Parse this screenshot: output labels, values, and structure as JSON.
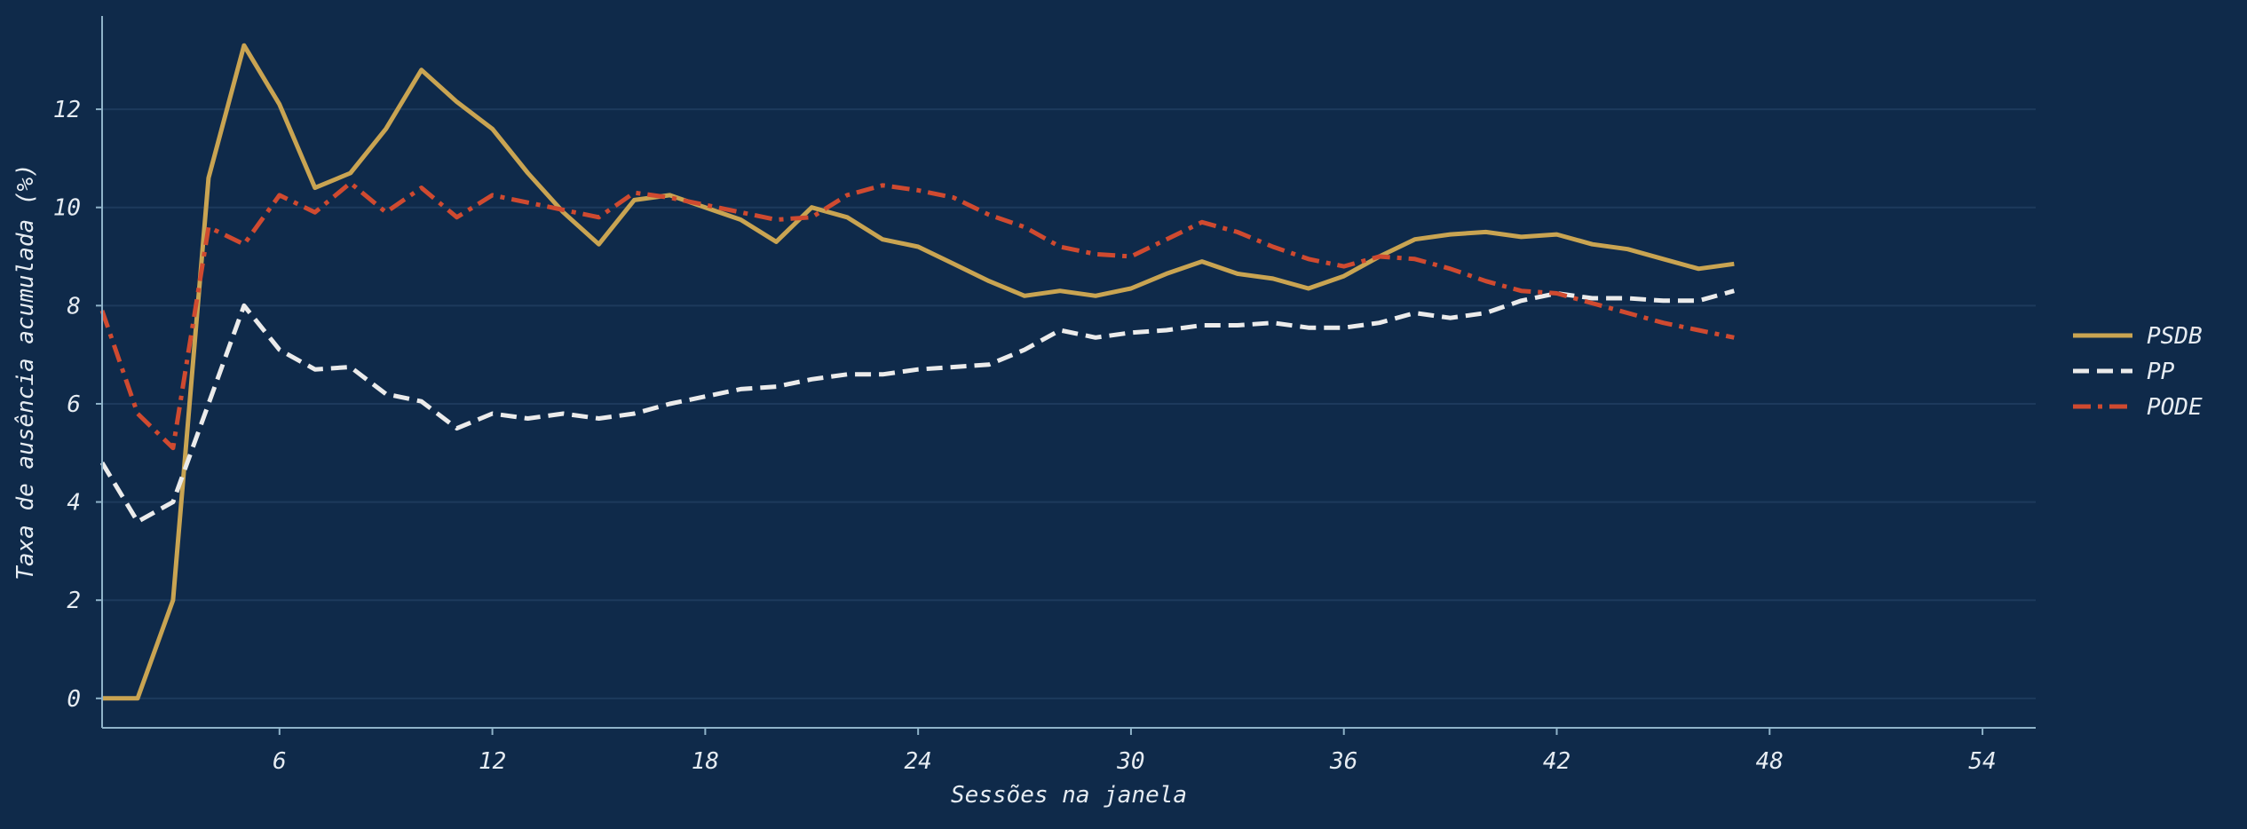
{
  "chart_data": {
    "type": "line",
    "xlabel": "Sessões na janela",
    "ylabel": "Taxa de ausência acumulada (%)",
    "xlim": [
      1,
      55.5
    ],
    "ylim": [
      -0.6,
      13.9
    ],
    "x_ticks": [
      6,
      12,
      18,
      24,
      30,
      36,
      42,
      48,
      54
    ],
    "y_ticks": [
      0,
      2,
      4,
      6,
      8,
      10,
      12
    ],
    "grid": "horizontal",
    "legend_position": "right",
    "colors": {
      "background": "#0f2a4a",
      "axis": "#8fb3c9",
      "grid": "#1d3a5c",
      "text": "#e6ecf2"
    },
    "series": [
      {
        "name": "PSDB",
        "color": "#c9a452",
        "dash": "solid",
        "x": [
          1,
          2,
          3,
          4,
          5,
          6,
          7,
          8,
          9,
          10,
          11,
          12,
          13,
          14,
          15,
          16,
          17,
          18,
          19,
          20,
          21,
          22,
          23,
          24,
          25,
          26,
          27,
          28,
          29,
          30,
          31,
          32,
          33,
          34,
          35,
          36,
          37,
          38,
          39,
          40,
          41,
          42,
          43,
          44,
          45,
          46,
          47
        ],
        "y": [
          0,
          0,
          2.0,
          10.6,
          13.3,
          12.1,
          10.4,
          10.7,
          11.6,
          12.8,
          12.15,
          11.6,
          10.7,
          9.9,
          9.25,
          10.15,
          10.25,
          10.0,
          9.75,
          9.3,
          10.0,
          9.8,
          9.35,
          9.2,
          8.85,
          8.5,
          8.2,
          8.3,
          8.2,
          8.35,
          8.65,
          8.9,
          8.65,
          8.55,
          8.35,
          8.6,
          9.0,
          9.35,
          9.45,
          9.5,
          9.4,
          9.45,
          9.25,
          9.15,
          8.95,
          8.75,
          8.85
        ]
      },
      {
        "name": "PP",
        "color": "#ebebeb",
        "dash": "dashed",
        "x": [
          1,
          2,
          3,
          4,
          5,
          6,
          7,
          8,
          9,
          10,
          11,
          12,
          13,
          14,
          15,
          16,
          17,
          18,
          19,
          20,
          21,
          22,
          23,
          24,
          25,
          26,
          27,
          28,
          29,
          30,
          31,
          32,
          33,
          34,
          35,
          36,
          37,
          38,
          39,
          40,
          41,
          42,
          43,
          44,
          45,
          46,
          47
        ],
        "y": [
          4.8,
          3.6,
          4.0,
          6.0,
          8.0,
          7.1,
          6.7,
          6.75,
          6.2,
          6.05,
          5.5,
          5.8,
          5.7,
          5.8,
          5.7,
          5.8,
          6.0,
          6.15,
          6.3,
          6.35,
          6.5,
          6.6,
          6.6,
          6.7,
          6.75,
          6.8,
          7.1,
          7.5,
          7.35,
          7.45,
          7.5,
          7.6,
          7.6,
          7.65,
          7.55,
          7.55,
          7.65,
          7.85,
          7.75,
          7.85,
          8.1,
          8.25,
          8.15,
          8.15,
          8.1,
          8.1,
          8.3
        ]
      },
      {
        "name": "PODE",
        "color": "#cf4a30",
        "dash": "dashdot",
        "x": [
          1,
          2,
          3,
          4,
          5,
          6,
          7,
          8,
          9,
          10,
          11,
          12,
          13,
          14,
          15,
          16,
          17,
          18,
          19,
          20,
          21,
          22,
          23,
          24,
          25,
          26,
          27,
          28,
          29,
          30,
          31,
          32,
          33,
          34,
          35,
          36,
          37,
          38,
          39,
          40,
          41,
          42,
          43,
          44,
          45,
          46,
          47
        ],
        "y": [
          7.9,
          5.8,
          5.1,
          9.6,
          9.25,
          10.25,
          9.9,
          10.5,
          9.9,
          10.4,
          9.8,
          10.25,
          10.1,
          9.95,
          9.8,
          10.3,
          10.2,
          10.05,
          9.9,
          9.75,
          9.8,
          10.25,
          10.45,
          10.35,
          10.2,
          9.85,
          9.6,
          9.2,
          9.05,
          9.0,
          9.35,
          9.7,
          9.5,
          9.2,
          8.95,
          8.8,
          9.0,
          8.95,
          8.75,
          8.5,
          8.3,
          8.25,
          8.05,
          7.85,
          7.65,
          7.5,
          7.35
        ]
      }
    ]
  }
}
